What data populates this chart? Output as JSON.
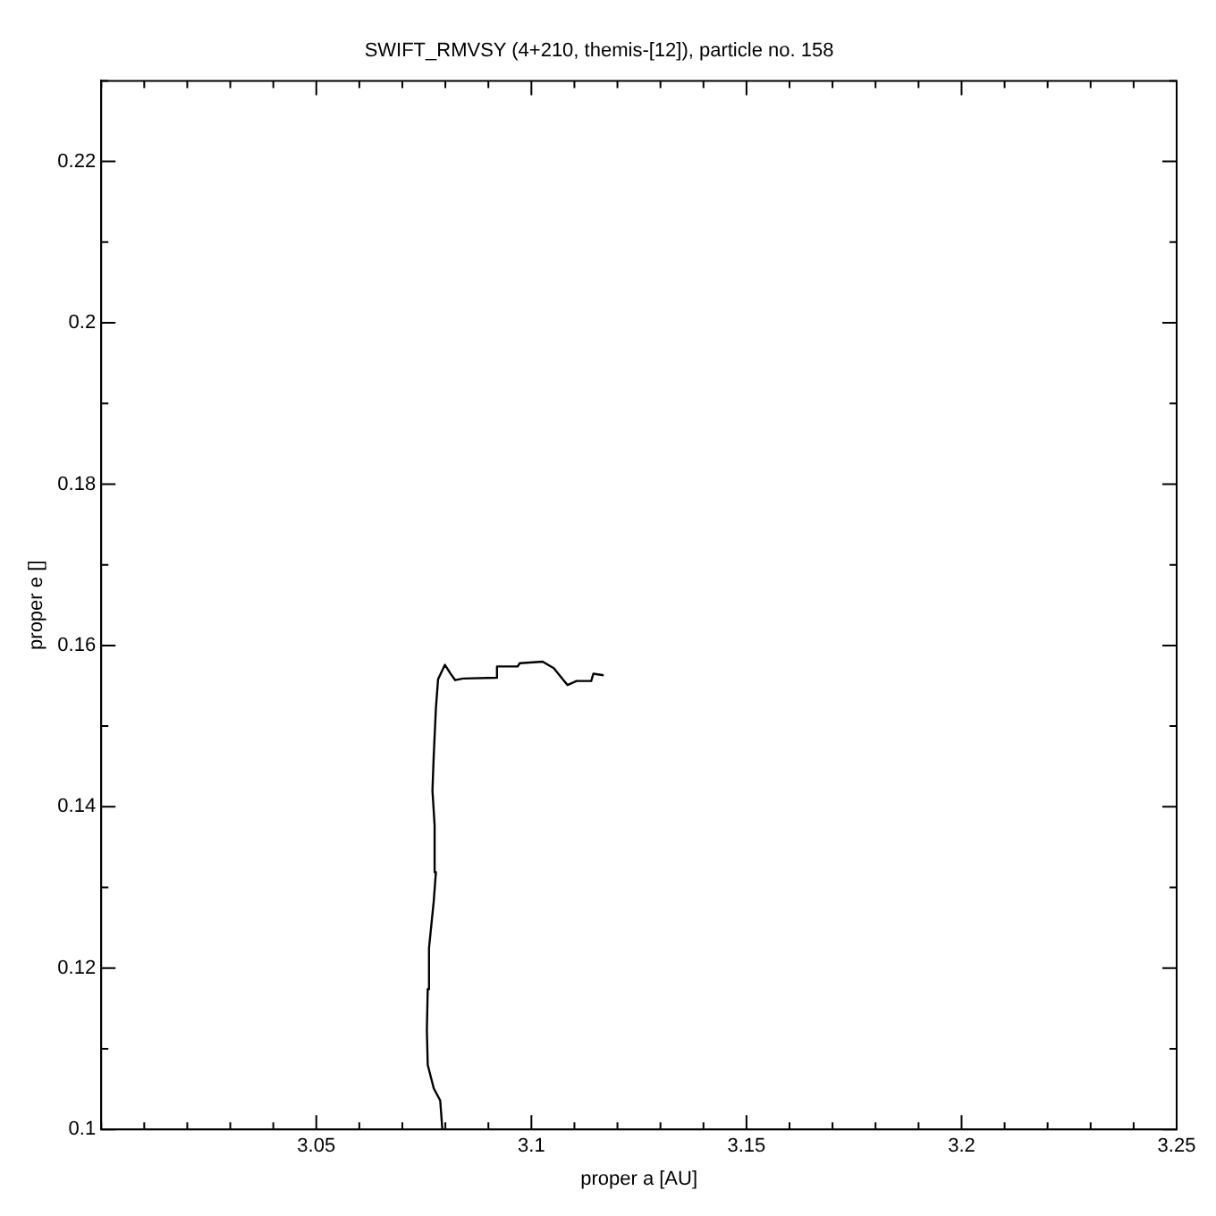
{
  "chart_data": {
    "type": "line",
    "title": "SWIFT_RMVSY (4+210, themis-[12]), particle no. 158",
    "xlabel": "proper a [AU]",
    "ylabel": "proper e []",
    "xlim": [
      3.0,
      3.25
    ],
    "xticks": [
      {
        "value": 3.0,
        "label": null
      },
      {
        "value": 3.01,
        "label": null
      },
      {
        "value": 3.02,
        "label": null
      },
      {
        "value": 3.03,
        "label": null
      },
      {
        "value": 3.04,
        "label": null
      },
      3.05,
      {
        "value": 3.06,
        "label": null
      },
      {
        "value": 3.07,
        "label": null
      },
      {
        "value": 3.08,
        "label": null
      },
      {
        "value": 3.09,
        "label": null
      },
      3.1,
      {
        "value": 3.11,
        "label": null
      },
      {
        "value": 3.12,
        "label": null
      },
      {
        "value": 3.13,
        "label": null
      },
      {
        "value": 3.14,
        "label": null
      },
      3.15,
      {
        "value": 3.16,
        "label": null
      },
      {
        "value": 3.17,
        "label": null
      },
      {
        "value": 3.18,
        "label": null
      },
      {
        "value": 3.19,
        "label": null
      },
      3.2,
      {
        "value": 3.21,
        "label": null
      },
      {
        "value": 3.22,
        "label": null
      },
      {
        "value": 3.23,
        "label": null
      },
      {
        "value": 3.24,
        "label": null
      },
      3.25
    ],
    "ylim": [
      0.1,
      0.23
    ],
    "yticks": [
      0.1,
      {
        "value": 0.11,
        "label": null
      },
      0.12,
      {
        "value": 0.13,
        "label": null
      },
      0.14,
      {
        "value": 0.15,
        "label": null
      },
      0.16,
      {
        "value": 0.17,
        "label": null
      },
      0.18,
      {
        "value": 0.19,
        "label": null
      },
      0.2,
      {
        "value": 0.21,
        "label": null
      },
      0.22,
      {
        "value": 0.23,
        "label": null
      }
    ],
    "grid": false,
    "legend": false,
    "marker": "none",
    "line_style": "solid",
    "series": [
      {
        "color": "#000000",
        "x": [
          3.0793,
          3.0788,
          3.0773,
          3.0759,
          3.0757,
          3.0759,
          3.0762,
          3.0773,
          3.0778,
          3.0775,
          3.077,
          3.0773,
          3.0778,
          3.0783,
          3.0799,
          3.0812,
          3.0823,
          3.0841,
          3.0918,
          3.092,
          3.0968,
          3.0973,
          3.1026,
          3.1052,
          3.1073,
          3.1084,
          3.1105,
          3.1139,
          3.1144,
          3.1168
        ],
        "values": [
          0.1,
          0.1036,
          0.1051,
          0.108,
          0.1123,
          0.1174,
          0.1225,
          0.1283,
          0.1319,
          0.1377,
          0.142,
          0.1464,
          0.1522,
          0.1558,
          0.1576,
          0.1565,
          0.1557,
          0.1559,
          0.156,
          0.1574,
          0.1574,
          0.1578,
          0.158,
          0.1572,
          0.1558,
          0.1551,
          0.1556,
          0.1556,
          0.1565,
          0.1563
        ]
      }
    ]
  }
}
